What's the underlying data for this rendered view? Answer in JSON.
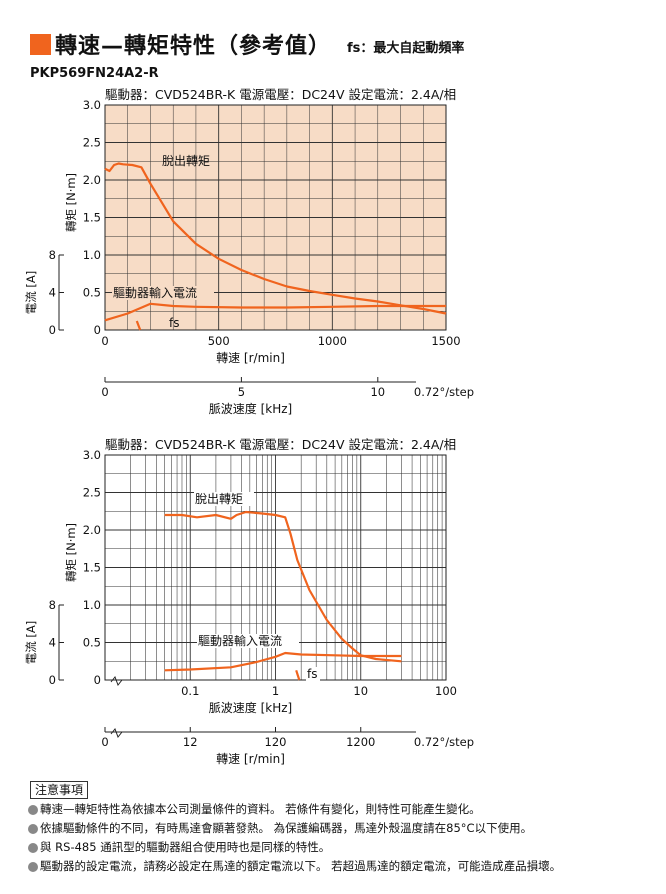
{
  "header": {
    "title": "轉速—轉矩特性（參考值）",
    "subtitle": "fs：最大自起動頻率",
    "accent_color": "#f0641e"
  },
  "model": "PKP569FN24A2-R",
  "chart_data": [
    {
      "type": "line",
      "conditions": [
        "驅動器：CVD524BR-K",
        "電源電壓：DC24V",
        "設定電流：2.4A/相"
      ],
      "xlabel": "轉速 [r/min]",
      "xlim": [
        0,
        1500
      ],
      "x_ticks": [
        "0",
        "500",
        "1000",
        "1500"
      ],
      "x2label": "脈波速度 [kHz]",
      "x2_ticks": [
        "0",
        "5",
        "10"
      ],
      "x2_step": "0.72°/step",
      "ylabel": "轉矩 [N·m]",
      "ylim": [
        0,
        3.0
      ],
      "y_ticks": [
        "0",
        "0.5",
        "1.0",
        "1.5",
        "2.0",
        "2.5",
        "3.0"
      ],
      "y2label": "電流 [A]",
      "y2_ticks": [
        "0",
        "4",
        "8"
      ],
      "series": [
        {
          "name": "脫出轉矩",
          "color": "#f0641e",
          "x": [
            0,
            20,
            40,
            60,
            80,
            120,
            160,
            200,
            240,
            300,
            400,
            500,
            600,
            700,
            800,
            900,
            1000,
            1100,
            1200,
            1300,
            1400,
            1500
          ],
          "y": [
            2.15,
            2.12,
            2.2,
            2.22,
            2.21,
            2.2,
            2.17,
            1.95,
            1.75,
            1.45,
            1.15,
            0.95,
            0.8,
            0.68,
            0.58,
            0.52,
            0.47,
            0.42,
            0.38,
            0.33,
            0.28,
            0.22
          ]
        },
        {
          "name": "驅動器輸入電流",
          "color": "#f0641e",
          "x": [
            0,
            100,
            200,
            300,
            400,
            600,
            800,
            1000,
            1200,
            1500
          ],
          "y": [
            0.13,
            0.22,
            0.35,
            0.32,
            0.31,
            0.3,
            0.3,
            0.31,
            0.32,
            0.32
          ]
        },
        {
          "name": "fs",
          "color": "#f0641e",
          "x": [
            140,
            155
          ],
          "y": [
            0.12,
            0.0
          ]
        }
      ]
    },
    {
      "type": "line",
      "conditions": [
        "驅動器：CVD524BR-K",
        "電源電壓：DC24V",
        "設定電流：2.4A/相"
      ],
      "xlabel": "脈波速度 [kHz]",
      "x_scale": "log",
      "xlim": [
        0.01,
        100
      ],
      "x_ticks": [
        "0.1",
        "1",
        "10",
        "100"
      ],
      "x2label": "轉速 [r/min]",
      "x2_ticks": [
        "0",
        "12",
        "120",
        "1200"
      ],
      "x2_step": "0.72°/step",
      "ylabel": "轉矩 [N·m]",
      "ylim": [
        0,
        3.0
      ],
      "y_ticks": [
        "0",
        "0.5",
        "1.0",
        "1.5",
        "2.0",
        "2.5",
        "3.0"
      ],
      "y2label": "電流 [A]",
      "y2_ticks": [
        "0",
        "4",
        "8"
      ],
      "series": [
        {
          "name": "脫出轉矩",
          "color": "#f0641e",
          "x": [
            0.05,
            0.08,
            0.12,
            0.2,
            0.3,
            0.35,
            0.45,
            0.7,
            1.0,
            1.3,
            1.5,
            1.8,
            2.5,
            4,
            6,
            8,
            10,
            15,
            30
          ],
          "y": [
            2.2,
            2.2,
            2.17,
            2.2,
            2.15,
            2.2,
            2.24,
            2.22,
            2.2,
            2.17,
            1.95,
            1.6,
            1.2,
            0.8,
            0.55,
            0.42,
            0.33,
            0.28,
            0.25
          ]
        },
        {
          "name": "驅動器輸入電流",
          "color": "#f0641e",
          "x": [
            0.05,
            0.1,
            0.3,
            0.6,
            1.0,
            1.3,
            2.0,
            5,
            10,
            30
          ],
          "y": [
            0.13,
            0.14,
            0.17,
            0.24,
            0.31,
            0.36,
            0.34,
            0.33,
            0.32,
            0.32
          ]
        },
        {
          "name": "fs",
          "color": "#f0641e",
          "x": [
            1.75,
            1.9
          ],
          "y": [
            0.13,
            0.0
          ]
        }
      ]
    }
  ],
  "notes": {
    "heading": "注意事項",
    "items": [
      "轉速—轉矩特性為依據本公司測量條件的資料。 若條件有變化，則特性可能產生變化。",
      "依據驅動條件的不同，有時馬達會顯著發熱。 為保護編碼器，馬達外殼溫度請在85°C以下使用。",
      "與 RS-485 通訊型的驅動器組合使用時也是同樣的特性。",
      "驅動器的設定電流，請務必設定在馬達的額定電流以下。 若超過馬達的額定電流，可能造成產品損壞。"
    ]
  }
}
